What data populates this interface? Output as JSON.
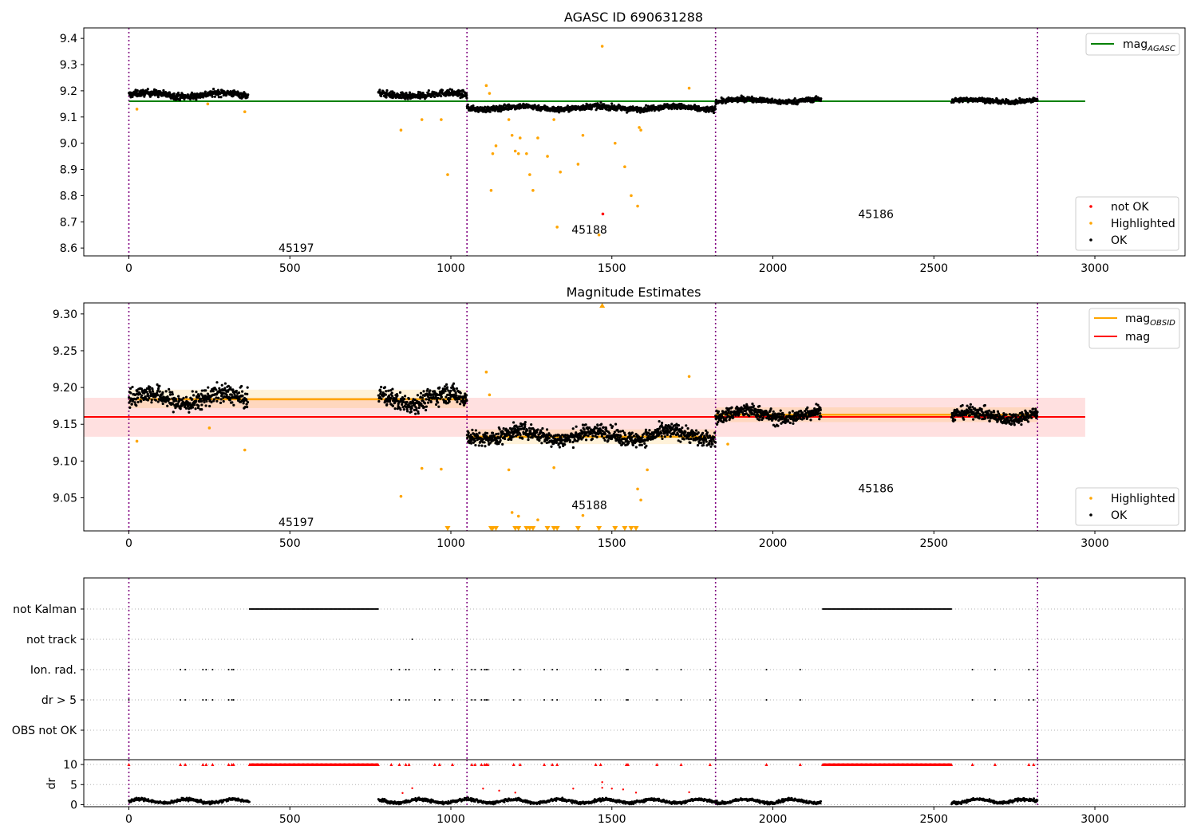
{
  "colors": {
    "ok": "#000000",
    "highlighted": "#ffa500",
    "not_ok": "#ff0000",
    "mag_agasc": "#008000",
    "mag_obsid": "#ffa500",
    "mag": "#ff0000",
    "obs_boundary": "#800080",
    "flag_grid": "#b0b0b0"
  },
  "chart_data": [
    {
      "type": "scatter",
      "title": "AGASC ID 690631288",
      "xlim": [
        -140,
        3280
      ],
      "ylim": [
        8.57,
        9.44
      ],
      "x_ticks": [
        "0",
        "500",
        "1000",
        "1500",
        "2000",
        "2500",
        "3000"
      ],
      "y_ticks": [
        "8.6",
        "8.7",
        "8.8",
        "8.9",
        "9.0",
        "9.1",
        "9.2",
        "9.3",
        "9.4"
      ],
      "mag_agasc": 9.16,
      "mag_agasc_x_range": [
        0,
        2970
      ],
      "obs_boundaries": [
        0,
        1050,
        1822,
        2822
      ],
      "obsid_labels": [
        {
          "text": "45197",
          "x": 520,
          "y": 8.6
        },
        {
          "text": "45188",
          "x": 1430,
          "y": 8.67
        },
        {
          "text": "45186",
          "x": 2320,
          "y": 8.73
        }
      ],
      "highlighted_points": [
        [
          25,
          9.13
        ],
        [
          245,
          9.15
        ],
        [
          360,
          9.12
        ],
        [
          845,
          9.05
        ],
        [
          910,
          9.09
        ],
        [
          970,
          9.09
        ],
        [
          990,
          8.88
        ],
        [
          1110,
          9.22
        ],
        [
          1120,
          9.19
        ],
        [
          1125,
          8.82
        ],
        [
          1130,
          8.96
        ],
        [
          1140,
          8.99
        ],
        [
          1180,
          9.09
        ],
        [
          1190,
          9.03
        ],
        [
          1200,
          8.97
        ],
        [
          1210,
          8.96
        ],
        [
          1215,
          9.02
        ],
        [
          1235,
          8.96
        ],
        [
          1245,
          8.88
        ],
        [
          1255,
          8.82
        ],
        [
          1270,
          9.02
        ],
        [
          1300,
          8.95
        ],
        [
          1320,
          9.09
        ],
        [
          1330,
          8.68
        ],
        [
          1340,
          8.89
        ],
        [
          1395,
          8.92
        ],
        [
          1410,
          9.03
        ],
        [
          1460,
          8.65
        ],
        [
          1470,
          9.37
        ],
        [
          1510,
          9.0
        ],
        [
          1540,
          8.91
        ],
        [
          1560,
          8.8
        ],
        [
          1580,
          8.76
        ],
        [
          1585,
          9.06
        ],
        [
          1590,
          9.05
        ],
        [
          1740,
          9.21
        ]
      ],
      "not_ok_points": [
        [
          1472,
          8.73
        ]
      ],
      "ok_segments": [
        {
          "x": [
            0,
            370
          ],
          "y": 9.185,
          "slope": -0.02,
          "spread": 0.012
        },
        {
          "x": [
            775,
            1050
          ],
          "y": 9.185,
          "slope": 0.0,
          "spread": 0.012
        },
        {
          "x": [
            1050,
            1822
          ],
          "y": 9.135,
          "slope": 0.0,
          "spread": 0.01
        },
        {
          "x": [
            1822,
            2150
          ],
          "y": 9.163,
          "slope": 0.0,
          "spread": 0.009
        },
        {
          "x": [
            2555,
            2822
          ],
          "y": 9.162,
          "slope": 0.0,
          "spread": 0.008
        }
      ],
      "legend_top": [
        {
          "label": "mag",
          "sub": "AGASC"
        }
      ],
      "legend_bottom": [
        "not OK",
        "Highlighted",
        "OK"
      ]
    },
    {
      "type": "scatter",
      "title": "Magnitude Estimates",
      "xlim": [
        -140,
        3280
      ],
      "ylim": [
        9.005,
        9.315
      ],
      "x_ticks": [
        "0",
        "500",
        "1000",
        "1500",
        "2000",
        "2500",
        "3000"
      ],
      "y_ticks": [
        "9.05",
        "9.10",
        "9.15",
        "9.20",
        "9.25",
        "9.30"
      ],
      "mag": 9.16,
      "mag_band": [
        9.133,
        9.186
      ],
      "mag_x_range": [
        -140,
        2970
      ],
      "mag_obsid": [
        {
          "x": [
            0,
            1050
          ],
          "y": 9.184,
          "band": [
            9.172,
            9.197
          ]
        },
        {
          "x": [
            1050,
            1822
          ],
          "y": 9.133,
          "band": [
            9.123,
            9.143
          ]
        },
        {
          "x": [
            1822,
            2822
          ],
          "y": 9.163,
          "band": [
            9.153,
            9.173
          ]
        }
      ],
      "obs_boundaries": [
        0,
        1050,
        1822,
        2822
      ],
      "obsid_labels": [
        {
          "text": "45197",
          "x": 520,
          "y": 9.017
        },
        {
          "text": "45188",
          "x": 1430,
          "y": 9.04
        },
        {
          "text": "45186",
          "x": 2320,
          "y": 9.063
        }
      ],
      "highlighted_points": [
        [
          25,
          9.127
        ],
        [
          250,
          9.145
        ],
        [
          360,
          9.115
        ],
        [
          845,
          9.052
        ],
        [
          910,
          9.09
        ],
        [
          970,
          9.089
        ],
        [
          1110,
          9.221
        ],
        [
          1120,
          9.19
        ],
        [
          1180,
          9.088
        ],
        [
          1190,
          9.03
        ],
        [
          1210,
          9.025
        ],
        [
          1270,
          9.02
        ],
        [
          1320,
          9.091
        ],
        [
          1410,
          9.026
        ],
        [
          1580,
          9.062
        ],
        [
          1590,
          9.047
        ],
        [
          1610,
          9.088
        ],
        [
          1740,
          9.215
        ],
        [
          1860,
          9.123
        ]
      ],
      "clipped_markers_x": [
        990,
        1125,
        1130,
        1140,
        1200,
        1210,
        1235,
        1245,
        1255,
        1300,
        1320,
        1330,
        1395,
        1460,
        1510,
        1540,
        1560,
        1575
      ],
      "clipped_top_x": [
        1470
      ],
      "ok_segments": [
        {
          "x": [
            0,
            370
          ],
          "y": 9.185,
          "slope": -0.02,
          "spread": 0.012
        },
        {
          "x": [
            775,
            1050
          ],
          "y": 9.185,
          "slope": 0.0,
          "spread": 0.012
        },
        {
          "x": [
            1050,
            1822
          ],
          "y": 9.135,
          "slope": 0.0,
          "spread": 0.01
        },
        {
          "x": [
            1822,
            2150
          ],
          "y": 9.163,
          "slope": 0.0,
          "spread": 0.009
        },
        {
          "x": [
            2555,
            2822
          ],
          "y": 9.162,
          "slope": 0.0,
          "spread": 0.008
        }
      ],
      "legend_top": [
        {
          "label": "mag",
          "sub": "OBSID"
        },
        {
          "label": "mag",
          "sub": ""
        }
      ],
      "legend_bottom": [
        "Highlighted",
        "OK"
      ]
    },
    {
      "type": "scatter",
      "title": "",
      "xlim": [
        -140,
        3280
      ],
      "flag_rows": [
        "not Kalman",
        "not track",
        "Ion. rad.",
        "dr > 5",
        "OBS not OK"
      ],
      "not_kalman_ranges": [
        [
          375,
          775
        ],
        [
          2155,
          2555
        ]
      ],
      "not_track_x": [
        880
      ],
      "ion_rad_x": [
        0,
        160,
        175,
        230,
        240,
        260,
        310,
        320,
        325,
        815,
        840,
        860,
        870,
        950,
        965,
        1005,
        1065,
        1075,
        1095,
        1105,
        1110,
        1115,
        1195,
        1215,
        1290,
        1315,
        1330,
        1450,
        1465,
        1545,
        1550,
        1640,
        1715,
        1805,
        1980,
        2085,
        2620,
        2690,
        2795,
        2810
      ],
      "dr_gt5_x": [
        0,
        160,
        175,
        230,
        240,
        260,
        310,
        320,
        325,
        815,
        840,
        860,
        870,
        950,
        965,
        1005,
        1065,
        1075,
        1095,
        1105,
        1110,
        1115,
        1195,
        1215,
        1290,
        1315,
        1330,
        1450,
        1465,
        1545,
        1550,
        1640,
        1715,
        1805,
        1980,
        2085,
        2620,
        2690,
        2795,
        2810
      ]
    },
    {
      "type": "scatter",
      "title": "",
      "ylabel": "dr",
      "xlim": [
        -140,
        3280
      ],
      "ylim": [
        -0.5,
        11.2
      ],
      "x_ticks": [
        "0",
        "500",
        "1000",
        "1500",
        "2000",
        "2500",
        "3000"
      ],
      "y_ticks": [
        "0",
        "5",
        "10"
      ],
      "clipped_value": 10,
      "ok_ranges": [
        [
          0,
          375
        ],
        [
          775,
          2150
        ],
        [
          2555,
          2822
        ]
      ],
      "not_ok_scatter": [
        [
          850,
          2.9
        ],
        [
          880,
          4.1
        ],
        [
          1100,
          4.0
        ],
        [
          1150,
          3.5
        ],
        [
          1200,
          3.0
        ],
        [
          1380,
          4.0
        ],
        [
          1470,
          5.6
        ],
        [
          1470,
          4.2
        ],
        [
          1500,
          4.0
        ],
        [
          1535,
          3.8
        ],
        [
          1575,
          3.0
        ],
        [
          1740,
          3.1
        ]
      ]
    }
  ]
}
